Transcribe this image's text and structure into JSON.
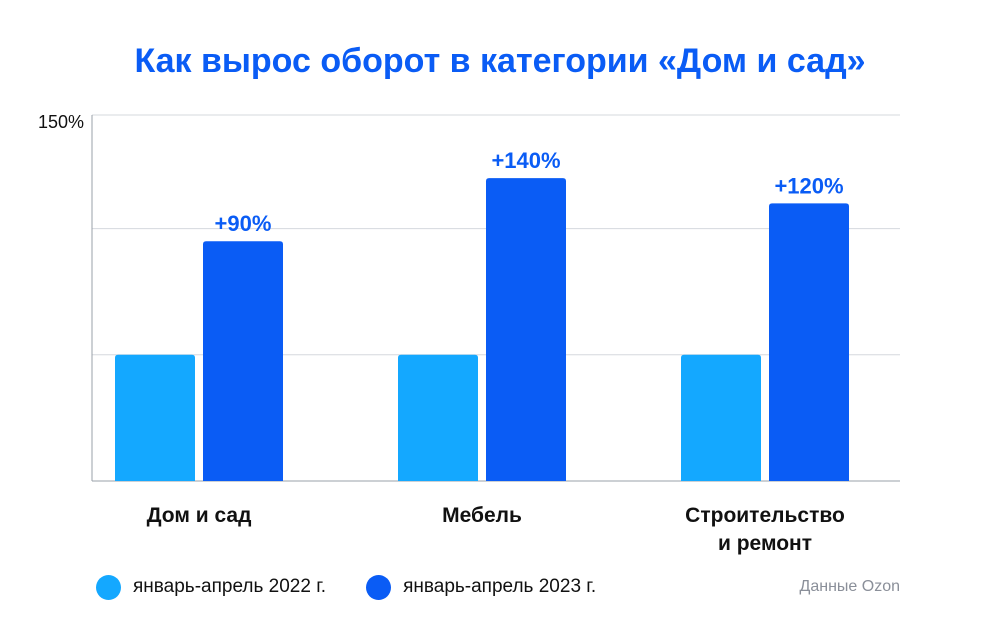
{
  "title": "Как вырос оборот в категории «Дом и сад»",
  "source": "Данные Ozon",
  "colors": {
    "series_2022": "#14a8ff",
    "series_2023": "#0a5cf5",
    "grid": "#d5d8de",
    "axis": "#9aa0a8",
    "text": "#111111",
    "label": "#0a5cf5"
  },
  "chart_data": {
    "type": "bar",
    "title": "Как вырос оборот в категории «Дом и сад»",
    "categories": [
      "Дом и сад",
      "Мебель",
      "Строительство\nи ремонт"
    ],
    "series": [
      {
        "name": "январь-апрель 2022 г.",
        "values": [
          100,
          100,
          100
        ]
      },
      {
        "name": "январь-апрель 2023 г.",
        "values": [
          190,
          240,
          220
        ],
        "labels": [
          "+90%",
          "+140%",
          "+120%"
        ]
      }
    ],
    "ytick_label": "150%",
    "ylim": [
      0,
      290
    ],
    "grid": true,
    "legend": "bottom-left"
  }
}
